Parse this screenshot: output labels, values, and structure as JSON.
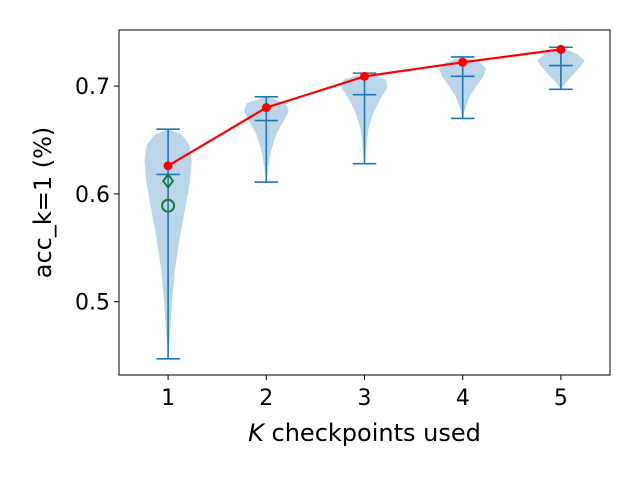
{
  "chart_data": {
    "type": "violin",
    "xlabel_prefix": "K",
    "xlabel_suffix": " checkpoints used",
    "ylabel": "acc_k=1 (%)",
    "categories": [
      "1",
      "2",
      "3",
      "4",
      "5"
    ],
    "x": [
      1,
      2,
      3,
      4,
      5
    ],
    "xlim": [
      0.5,
      5.5
    ],
    "ylim": [
      0.432,
      0.752
    ],
    "yticks": [
      0.5,
      0.6,
      0.7
    ],
    "ytick_labels": [
      "0.5",
      "0.6",
      "0.7"
    ],
    "grid": false,
    "legend": "none",
    "violins": [
      {
        "x": 1,
        "min": 0.447,
        "max": 0.66,
        "median": 0.618,
        "profile": [
          [
            0.447,
            0.0
          ],
          [
            0.47,
            0.02
          ],
          [
            0.5,
            0.04
          ],
          [
            0.53,
            0.07
          ],
          [
            0.56,
            0.12
          ],
          [
            0.59,
            0.18
          ],
          [
            0.61,
            0.22
          ],
          [
            0.63,
            0.24
          ],
          [
            0.645,
            0.22
          ],
          [
            0.655,
            0.14
          ],
          [
            0.66,
            0.0
          ]
        ]
      },
      {
        "x": 2,
        "min": 0.611,
        "max": 0.69,
        "median": 0.668,
        "profile": [
          [
            0.611,
            0.0
          ],
          [
            0.625,
            0.02
          ],
          [
            0.64,
            0.05
          ],
          [
            0.655,
            0.1
          ],
          [
            0.668,
            0.18
          ],
          [
            0.677,
            0.23
          ],
          [
            0.684,
            0.2
          ],
          [
            0.69,
            0.0
          ]
        ]
      },
      {
        "x": 3,
        "min": 0.628,
        "max": 0.712,
        "median": 0.692,
        "profile": [
          [
            0.628,
            0.0
          ],
          [
            0.645,
            0.02
          ],
          [
            0.66,
            0.04
          ],
          [
            0.675,
            0.09
          ],
          [
            0.688,
            0.16
          ],
          [
            0.698,
            0.23
          ],
          [
            0.706,
            0.22
          ],
          [
            0.712,
            0.0
          ]
        ]
      },
      {
        "x": 4,
        "min": 0.67,
        "max": 0.727,
        "median": 0.709,
        "profile": [
          [
            0.67,
            0.0
          ],
          [
            0.68,
            0.03
          ],
          [
            0.69,
            0.07
          ],
          [
            0.7,
            0.14
          ],
          [
            0.709,
            0.21
          ],
          [
            0.716,
            0.24
          ],
          [
            0.722,
            0.17
          ],
          [
            0.727,
            0.0
          ]
        ]
      },
      {
        "x": 5,
        "min": 0.697,
        "max": 0.736,
        "median": 0.719,
        "profile": [
          [
            0.697,
            0.0
          ],
          [
            0.703,
            0.05
          ],
          [
            0.71,
            0.12
          ],
          [
            0.718,
            0.2
          ],
          [
            0.724,
            0.24
          ],
          [
            0.73,
            0.16
          ],
          [
            0.736,
            0.0
          ]
        ]
      }
    ],
    "series": [
      {
        "color": "#ff0000",
        "x": [
          1,
          2,
          3,
          4,
          5
        ],
        "y": [
          0.626,
          0.68,
          0.709,
          0.722,
          0.734
        ]
      }
    ],
    "extra_markers": [
      {
        "x": 1,
        "y": 0.612,
        "marker": "diamond",
        "color": "#1a7a3a"
      },
      {
        "x": 1,
        "y": 0.589,
        "marker": "circle",
        "color": "#1a7a3a"
      }
    ],
    "colors": {
      "violin_fill": "#1f77b4",
      "violin_stats": "#1f77b4",
      "mean_line": "#ff0000",
      "extra_markers": "#1a7a3a"
    }
  }
}
